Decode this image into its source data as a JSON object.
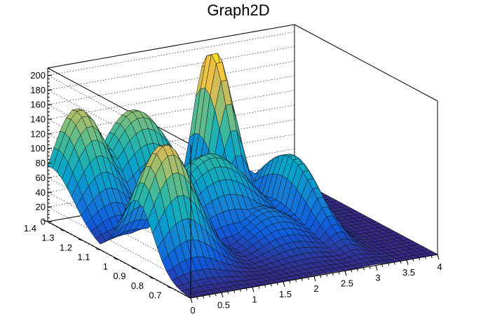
{
  "chart_data": {
    "type": "surface",
    "title": "Graph2D",
    "xlabel": "",
    "ylabel": "",
    "zlabel": "",
    "xlim": [
      0,
      4
    ],
    "ylim": [
      0.6,
      1.4
    ],
    "zlim": [
      0,
      210
    ],
    "x_ticks": [
      "0",
      "0.5",
      "1",
      "1.5",
      "2",
      "2.5",
      "3",
      "3.5",
      "4"
    ],
    "y_ticks": [
      "0.7",
      "0.8",
      "0.9",
      "1",
      "1.1",
      "1.2",
      "1.3",
      "1.4"
    ],
    "z_ticks": [
      "0",
      "20",
      "40",
      "60",
      "80",
      "100",
      "120",
      "140",
      "160",
      "180",
      "200"
    ],
    "grid": true,
    "colormap": [
      "#352a87",
      "#0f5cdd",
      "#1481d6",
      "#06a4ca",
      "#2eb7a4",
      "#87bf77",
      "#d1bb59",
      "#fec832",
      "#f9fb0e"
    ],
    "surface_features": [
      {
        "x": 0.0,
        "y": 1.26,
        "peak": 35,
        "sx": 0.25,
        "sy": 0.12
      },
      {
        "x": 0.45,
        "y": 1.38,
        "peak": 150,
        "sx": 0.55,
        "sy": 0.18
      },
      {
        "x": 1.35,
        "y": 1.38,
        "peak": 135,
        "sx": 0.75,
        "sy": 0.16
      },
      {
        "x": 2.55,
        "y": 1.35,
        "peak": 205,
        "sx": 0.28,
        "sy": 0.14
      },
      {
        "x": 1.75,
        "y": 1.1,
        "peak": 105,
        "sx": 0.85,
        "sy": 0.14
      },
      {
        "x": 0.45,
        "y": 0.9,
        "peak": 165,
        "sx": 0.6,
        "sy": 0.13
      },
      {
        "x": 2.95,
        "y": 1.05,
        "peak": 95,
        "sx": 0.25,
        "sy": 0.22
      },
      {
        "x": 2.2,
        "y": 0.95,
        "peak": 45,
        "sx": 0.6,
        "sy": 0.18
      }
    ]
  }
}
